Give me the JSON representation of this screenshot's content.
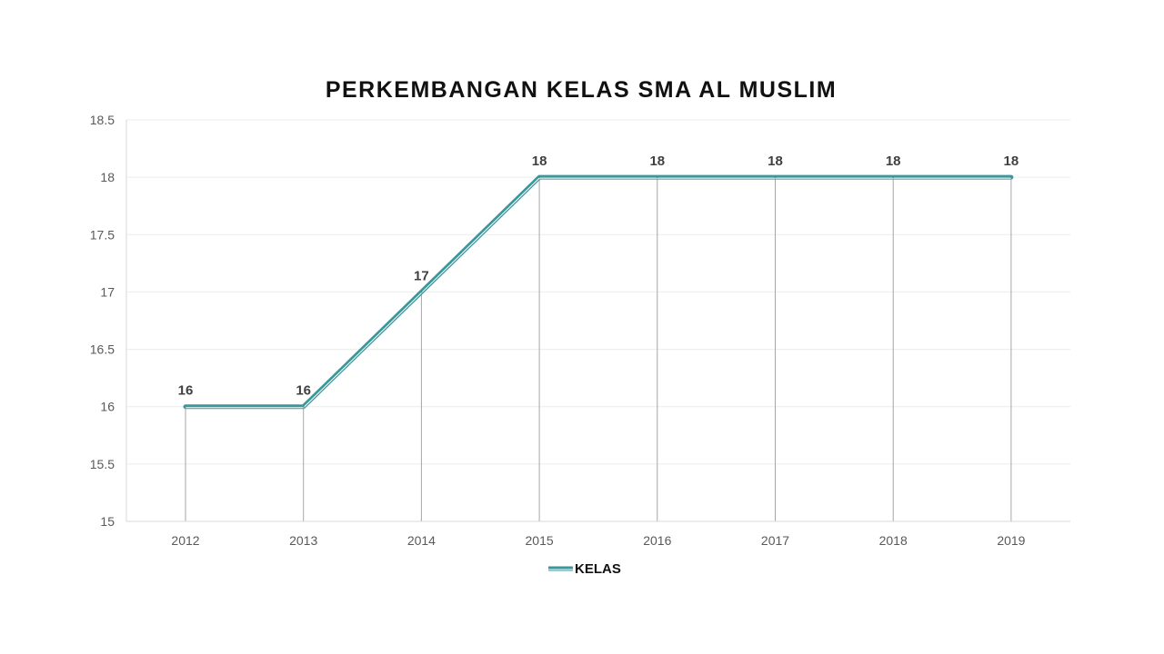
{
  "chart_data": {
    "type": "line",
    "title": "PERKEMBANGAN KELAS SMA AL MUSLIM",
    "categories": [
      "2012",
      "2013",
      "2014",
      "2015",
      "2016",
      "2017",
      "2018",
      "2019"
    ],
    "series": [
      {
        "name": "KELAS",
        "values": [
          16,
          16,
          17,
          18,
          18,
          18,
          18,
          18
        ],
        "color": "#3a979b"
      }
    ],
    "data_labels": [
      "16",
      "16",
      "17",
      "18",
      "18",
      "18",
      "18",
      "18"
    ],
    "y_ticks": [
      "15",
      "15.5",
      "16",
      "16.5",
      "17",
      "17.5",
      "18",
      "18.5"
    ],
    "ylim": [
      15,
      18.5
    ],
    "y_step": 0.5,
    "grid": true,
    "drop_lines": true,
    "legend_position": "bottom",
    "colors": {
      "line": "#3a979b",
      "grid": "#ececec",
      "axis": "#d9d9d9",
      "drop_line": "#a6a6a6"
    }
  }
}
